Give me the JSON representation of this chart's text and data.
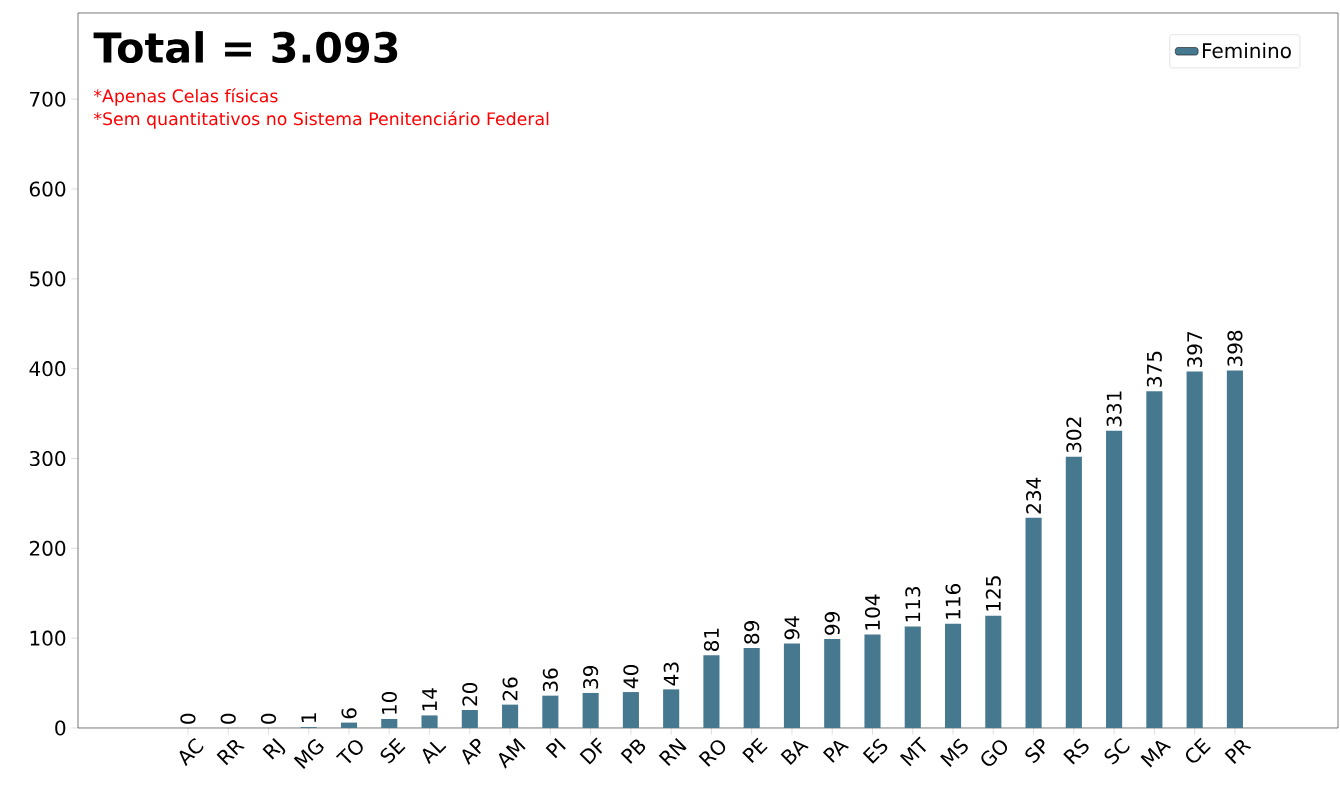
{
  "chart_data": {
    "type": "bar",
    "title": "Total = 3.093",
    "annotations": [
      "*Apenas Celas físicas",
      "*Sem quantitativos no Sistema Penitenciário Federal"
    ],
    "categories": [
      "AC",
      "RR",
      "RJ",
      "MG",
      "TO",
      "SE",
      "AL",
      "AP",
      "AM",
      "PI",
      "DF",
      "PB",
      "RN",
      "RO",
      "PE",
      "BA",
      "PA",
      "ES",
      "MT",
      "MS",
      "GO",
      "SP",
      "RS",
      "SC",
      "MA",
      "CE",
      "PR"
    ],
    "series": [
      {
        "name": "Feminino",
        "color": "#46788f",
        "values": [
          0,
          0,
          0,
          1,
          6,
          10,
          14,
          20,
          26,
          36,
          39,
          40,
          43,
          81,
          89,
          94,
          99,
          104,
          113,
          116,
          125,
          234,
          302,
          331,
          375,
          397,
          398
        ]
      }
    ],
    "ylim": [
      0,
      796
    ],
    "yticks": [
      0,
      100,
      200,
      300,
      400,
      500,
      600,
      700
    ],
    "data_labels": true,
    "legend": "top right",
    "grid": false
  }
}
